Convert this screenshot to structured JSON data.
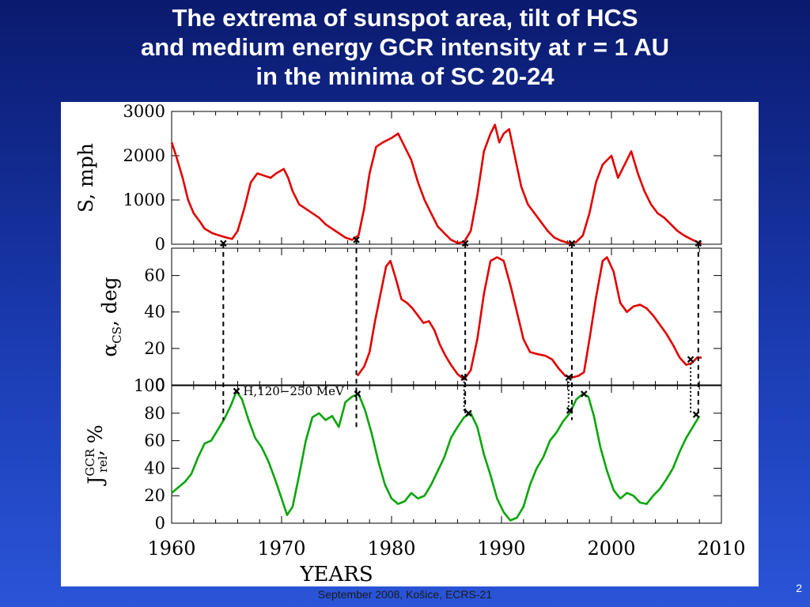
{
  "slide": {
    "title_lines": [
      "The extrema of sunspot area, tilt of HCS",
      "and medium energy GCR intensity  at r = 1 AU",
      "in the minima of SC 20-24"
    ],
    "footer": "September 2008, Košice, ECRS-21",
    "page_number": "2"
  },
  "colors": {
    "sunspot": "#e00000",
    "tilt": "#e00000",
    "gcr": "#0aa50a",
    "marker": "#000000"
  },
  "chart_data": {
    "type": "line",
    "xlabel": "YEARS",
    "xlim": [
      1960,
      2010
    ],
    "x_ticks": [
      "1960",
      "1970",
      "1980",
      "1990",
      "2000",
      "2010"
    ],
    "panels": [
      {
        "id": "sunspot",
        "ylabel": "S,  mph",
        "ylim": [
          0,
          3000
        ],
        "y_ticks": [
          "0",
          "1000",
          "2000",
          "3000"
        ],
        "color": "#e00000",
        "points": [
          [
            1960,
            2300
          ],
          [
            1960.4,
            2000
          ],
          [
            1961,
            1500
          ],
          [
            1961.5,
            1000
          ],
          [
            1962,
            700
          ],
          [
            1962.6,
            500
          ],
          [
            1963,
            350
          ],
          [
            1963.7,
            250
          ],
          [
            1964.3,
            200
          ],
          [
            1965,
            150
          ],
          [
            1965.5,
            120
          ],
          [
            1966,
            300
          ],
          [
            1966.6,
            800
          ],
          [
            1967.2,
            1400
          ],
          [
            1967.8,
            1600
          ],
          [
            1968.4,
            1550
          ],
          [
            1969,
            1500
          ],
          [
            1969.5,
            1600
          ],
          [
            1970.2,
            1700
          ],
          [
            1970.6,
            1500
          ],
          [
            1971,
            1200
          ],
          [
            1971.6,
            900
          ],
          [
            1972.2,
            800
          ],
          [
            1972.8,
            700
          ],
          [
            1973.4,
            600
          ],
          [
            1974,
            450
          ],
          [
            1974.6,
            350
          ],
          [
            1975.2,
            250
          ],
          [
            1975.8,
            150
          ],
          [
            1976.4,
            100
          ],
          [
            1977,
            200
          ],
          [
            1977.5,
            800
          ],
          [
            1978,
            1600
          ],
          [
            1978.6,
            2200
          ],
          [
            1979.2,
            2300
          ],
          [
            1980,
            2400
          ],
          [
            1980.6,
            2500
          ],
          [
            1981.2,
            2200
          ],
          [
            1981.8,
            1900
          ],
          [
            1982.4,
            1400
          ],
          [
            1983,
            1000
          ],
          [
            1983.6,
            700
          ],
          [
            1984.2,
            400
          ],
          [
            1984.8,
            250
          ],
          [
            1985.4,
            100
          ],
          [
            1986,
            30
          ],
          [
            1986.6,
            50
          ],
          [
            1987.2,
            300
          ],
          [
            1987.8,
            1100
          ],
          [
            1988.4,
            2100
          ],
          [
            1989,
            2500
          ],
          [
            1989.4,
            2700
          ],
          [
            1989.8,
            2300
          ],
          [
            1990.2,
            2500
          ],
          [
            1990.7,
            2600
          ],
          [
            1991.2,
            2000
          ],
          [
            1991.8,
            1300
          ],
          [
            1992.4,
            900
          ],
          [
            1993,
            700
          ],
          [
            1993.6,
            500
          ],
          [
            1994.2,
            300
          ],
          [
            1994.8,
            150
          ],
          [
            1995.4,
            80
          ],
          [
            1996.2,
            20
          ],
          [
            1996.8,
            50
          ],
          [
            1997.4,
            200
          ],
          [
            1998,
            700
          ],
          [
            1998.6,
            1400
          ],
          [
            1999.2,
            1800
          ],
          [
            2000,
            2000
          ],
          [
            2000.6,
            1500
          ],
          [
            2001.2,
            1800
          ],
          [
            2001.8,
            2100
          ],
          [
            2002.4,
            1600
          ],
          [
            2003,
            1200
          ],
          [
            2003.6,
            900
          ],
          [
            2004.2,
            700
          ],
          [
            2004.8,
            600
          ],
          [
            2005.4,
            450
          ],
          [
            2006,
            300
          ],
          [
            2006.6,
            200
          ],
          [
            2007.2,
            120
          ],
          [
            2007.8,
            50
          ],
          [
            2008.2,
            10
          ]
        ],
        "minima": [
          [
            1964.7,
            20
          ],
          [
            1976.8,
            100
          ],
          [
            1986.7,
            20
          ],
          [
            1996.4,
            20
          ],
          [
            2007.9,
            20
          ]
        ]
      },
      {
        "id": "tilt",
        "ylabel": "α_CS,  deg",
        "ylim": [
          0,
          75
        ],
        "y_ticks": [
          "0",
          "20",
          "40",
          "60"
        ],
        "color": "#e00000",
        "points": [
          [
            1976.9,
            5
          ],
          [
            1977.5,
            10
          ],
          [
            1978,
            18
          ],
          [
            1978.5,
            35
          ],
          [
            1979,
            50
          ],
          [
            1979.5,
            65
          ],
          [
            1979.9,
            68
          ],
          [
            1980.4,
            58
          ],
          [
            1980.9,
            47
          ],
          [
            1981.4,
            45
          ],
          [
            1981.9,
            42
          ],
          [
            1982.4,
            38
          ],
          [
            1982.9,
            34
          ],
          [
            1983.4,
            35
          ],
          [
            1983.9,
            30
          ],
          [
            1984.4,
            22
          ],
          [
            1984.9,
            16
          ],
          [
            1985.4,
            11
          ],
          [
            1986,
            6
          ],
          [
            1986.6,
            3
          ],
          [
            1987.2,
            8
          ],
          [
            1987.8,
            25
          ],
          [
            1988.4,
            50
          ],
          [
            1989,
            68
          ],
          [
            1989.6,
            70
          ],
          [
            1990.2,
            68
          ],
          [
            1990.8,
            55
          ],
          [
            1991.4,
            40
          ],
          [
            1992,
            25
          ],
          [
            1992.6,
            18
          ],
          [
            1993.2,
            17
          ],
          [
            1994,
            16
          ],
          [
            1994.6,
            14
          ],
          [
            1995.2,
            9
          ],
          [
            1995.8,
            5
          ],
          [
            1996.4,
            4
          ],
          [
            1997,
            5
          ],
          [
            1997.5,
            7
          ],
          [
            1998,
            25
          ],
          [
            1998.6,
            48
          ],
          [
            1999.2,
            68
          ],
          [
            1999.6,
            70
          ],
          [
            2000.2,
            62
          ],
          [
            2000.8,
            45
          ],
          [
            2001.4,
            40
          ],
          [
            2002,
            43
          ],
          [
            2002.6,
            44
          ],
          [
            2003.2,
            42
          ],
          [
            2003.8,
            38
          ],
          [
            2004.4,
            33
          ],
          [
            2005,
            28
          ],
          [
            2005.6,
            22
          ],
          [
            2006.2,
            15
          ],
          [
            2006.8,
            11
          ],
          [
            2007.3,
            12
          ],
          [
            2007.8,
            15
          ],
          [
            2008.2,
            15
          ]
        ],
        "minima": [
          [
            1986.6,
            4
          ],
          [
            1996.1,
            4
          ],
          [
            2007.2,
            14
          ]
        ]
      },
      {
        "id": "gcr",
        "ylabel": "J_rel^GCR, %",
        "ylim": [
          0,
          100
        ],
        "y_ticks": [
          "0",
          "20",
          "40",
          "60",
          "80",
          "100"
        ],
        "annotation": "H,120−250 MeV",
        "color": "#0aa50a",
        "points": [
          [
            1960,
            22
          ],
          [
            1960.6,
            26
          ],
          [
            1961.2,
            30
          ],
          [
            1961.8,
            36
          ],
          [
            1962.4,
            48
          ],
          [
            1963,
            58
          ],
          [
            1963.6,
            60
          ],
          [
            1964.2,
            68
          ],
          [
            1964.8,
            76
          ],
          [
            1965.4,
            86
          ],
          [
            1965.9,
            96
          ],
          [
            1966.4,
            90
          ],
          [
            1967,
            75
          ],
          [
            1967.6,
            62
          ],
          [
            1968.2,
            55
          ],
          [
            1968.8,
            45
          ],
          [
            1969.4,
            32
          ],
          [
            1970,
            18
          ],
          [
            1970.5,
            6
          ],
          [
            1971,
            12
          ],
          [
            1971.6,
            35
          ],
          [
            1972.2,
            60
          ],
          [
            1972.8,
            77
          ],
          [
            1973.4,
            80
          ],
          [
            1974,
            75
          ],
          [
            1974.6,
            78
          ],
          [
            1975.2,
            70
          ],
          [
            1975.8,
            88
          ],
          [
            1976.4,
            92
          ],
          [
            1977,
            94
          ],
          [
            1977.6,
            82
          ],
          [
            1978.2,
            65
          ],
          [
            1978.8,
            45
          ],
          [
            1979.4,
            28
          ],
          [
            1980,
            18
          ],
          [
            1980.6,
            14
          ],
          [
            1981.2,
            16
          ],
          [
            1981.8,
            22
          ],
          [
            1982.4,
            18
          ],
          [
            1983,
            20
          ],
          [
            1983.6,
            28
          ],
          [
            1984.2,
            38
          ],
          [
            1984.8,
            48
          ],
          [
            1985.4,
            62
          ],
          [
            1986,
            70
          ],
          [
            1986.6,
            77
          ],
          [
            1987.2,
            80
          ],
          [
            1987.8,
            70
          ],
          [
            1988.4,
            50
          ],
          [
            1989,
            35
          ],
          [
            1989.6,
            18
          ],
          [
            1990.2,
            8
          ],
          [
            1990.8,
            2
          ],
          [
            1991.4,
            4
          ],
          [
            1992,
            12
          ],
          [
            1992.6,
            28
          ],
          [
            1993.2,
            40
          ],
          [
            1993.8,
            48
          ],
          [
            1994.4,
            60
          ],
          [
            1995,
            66
          ],
          [
            1995.6,
            74
          ],
          [
            1996.2,
            80
          ],
          [
            1996.8,
            90
          ],
          [
            1997.4,
            94
          ],
          [
            1997.9,
            92
          ],
          [
            1998.4,
            78
          ],
          [
            1999,
            55
          ],
          [
            1999.6,
            38
          ],
          [
            2000.2,
            24
          ],
          [
            2000.8,
            18
          ],
          [
            2001.4,
            22
          ],
          [
            2002,
            20
          ],
          [
            2002.6,
            15
          ],
          [
            2003.2,
            14
          ],
          [
            2003.8,
            20
          ],
          [
            2004.4,
            25
          ],
          [
            2005,
            32
          ],
          [
            2005.6,
            40
          ],
          [
            2006.2,
            52
          ],
          [
            2006.8,
            62
          ],
          [
            2007.4,
            70
          ],
          [
            2008,
            78
          ]
        ],
        "minima": [
          [
            1965.9,
            96
          ],
          [
            1976.9,
            94
          ],
          [
            1987.0,
            80
          ],
          [
            1996.2,
            82
          ],
          [
            1997.5,
            94
          ],
          [
            2007.7,
            79
          ]
        ]
      }
    ]
  }
}
